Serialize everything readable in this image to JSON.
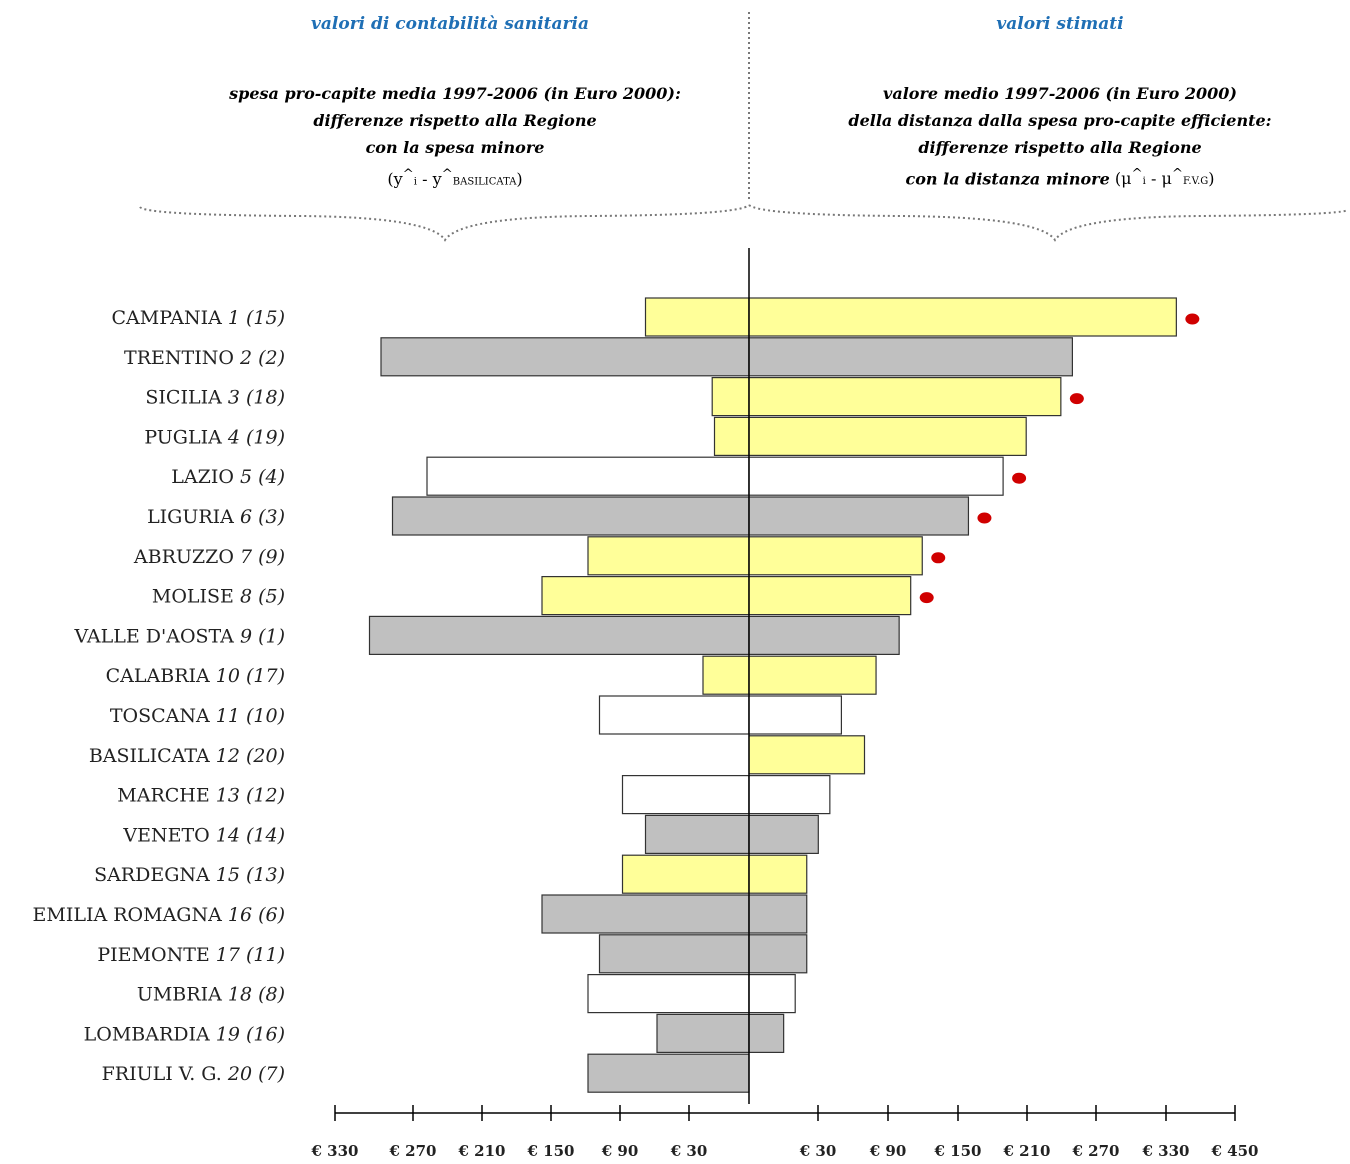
{
  "header": {
    "left_title": "valori di contabilità sanitaria",
    "left_line1": "spesa pro-capite media 1997-2006 (in Euro 2000):",
    "left_line2": "differenze rispetto alla Regione",
    "left_line3": "con la spesa minore",
    "left_formula_a": "(y",
    "left_formula_b": "^",
    "left_formula_c": "i",
    "left_formula_d": " - y",
    "left_formula_e": "^",
    "left_formula_f": "BASILICATA",
    "left_formula_g": ")",
    "right_title": "valori stimati",
    "right_line1": "valore medio 1997-2006 (in Euro 2000)",
    "right_line2": "della distanza dalla spesa pro-capite efficiente:",
    "right_line3": "differenze rispetto alla Regione",
    "right_line4": "con la distanza minore",
    "right_formula_a": " (μ",
    "right_formula_b": "^",
    "right_formula_c": "i",
    "right_formula_d": " - μ",
    "right_formula_e": "^",
    "right_formula_f": "F.V.G",
    "right_formula_g": ")"
  },
  "colors": {
    "yellow": "#ffff99",
    "gray": "#c0c0c0",
    "white": "#ffffff",
    "dot": "#d00000",
    "title_blue": "#1f6fb5"
  },
  "chart_data": {
    "type": "bar",
    "orientation": "horizontal-diverging",
    "categories": [
      "CAMPANIA",
      "TRENTINO",
      "SICILIA",
      "PUGLIA",
      "LAZIO",
      "LIGURIA",
      "ABRUZZO",
      "MOLISE",
      "VALLE D'AOSTA",
      "CALABRIA",
      "TOSCANA",
      "BASILICATA",
      "MARCHE",
      "VENETO",
      "SARDEGNA",
      "EMILIA ROMAGNA",
      "PIEMONTE",
      "UMBRIA",
      "LOMBARDIA",
      "FRIULI V. G."
    ],
    "rank_right": [
      "1",
      "2",
      "3",
      "4",
      "5",
      "6",
      "7",
      "8",
      "9",
      "10",
      "11",
      "12",
      "13",
      "14",
      "15",
      "16",
      "17",
      "18",
      "19",
      "20"
    ],
    "rank_left": [
      "(15)",
      "(2)",
      "(18)",
      "(19)",
      "(4)",
      "(3)",
      "(9)",
      "(5)",
      "(1)",
      "(17)",
      "(10)",
      "(20)",
      "(12)",
      "(14)",
      "(13)",
      "(6)",
      "(11)",
      "(8)",
      "(16)",
      "(7)"
    ],
    "fill": [
      "yellow",
      "gray",
      "yellow",
      "yellow",
      "white",
      "gray",
      "yellow",
      "yellow",
      "gray",
      "yellow",
      "white",
      "yellow",
      "white",
      "gray",
      "yellow",
      "gray",
      "gray",
      "white",
      "gray",
      "gray"
    ],
    "series": [
      {
        "values": [
          90,
          320,
          32,
          30,
          280,
          310,
          140,
          180,
          330,
          40,
          130,
          0,
          110,
          90,
          110,
          180,
          130,
          140,
          80,
          140
        ]
      },
      {
        "values": [
          370,
          280,
          270,
          240,
          220,
          190,
          150,
          140,
          130,
          110,
          80,
          100,
          70,
          60,
          50,
          50,
          50,
          40,
          30,
          0
        ]
      }
    ],
    "red_dot": [
      true,
      false,
      true,
      false,
      true,
      true,
      true,
      true,
      false,
      false,
      false,
      false,
      false,
      false,
      false,
      false,
      false,
      false,
      false,
      false
    ],
    "x_ticks_left": [
      "€ 330",
      "€ 270",
      "€ 210",
      "€ 150",
      "€ 90",
      "€ 30"
    ],
    "x_ticks_right": [
      "€ 30",
      "€ 90",
      "€ 150",
      "€ 210",
      "€ 270",
      "€ 330",
      "€ 450"
    ]
  }
}
